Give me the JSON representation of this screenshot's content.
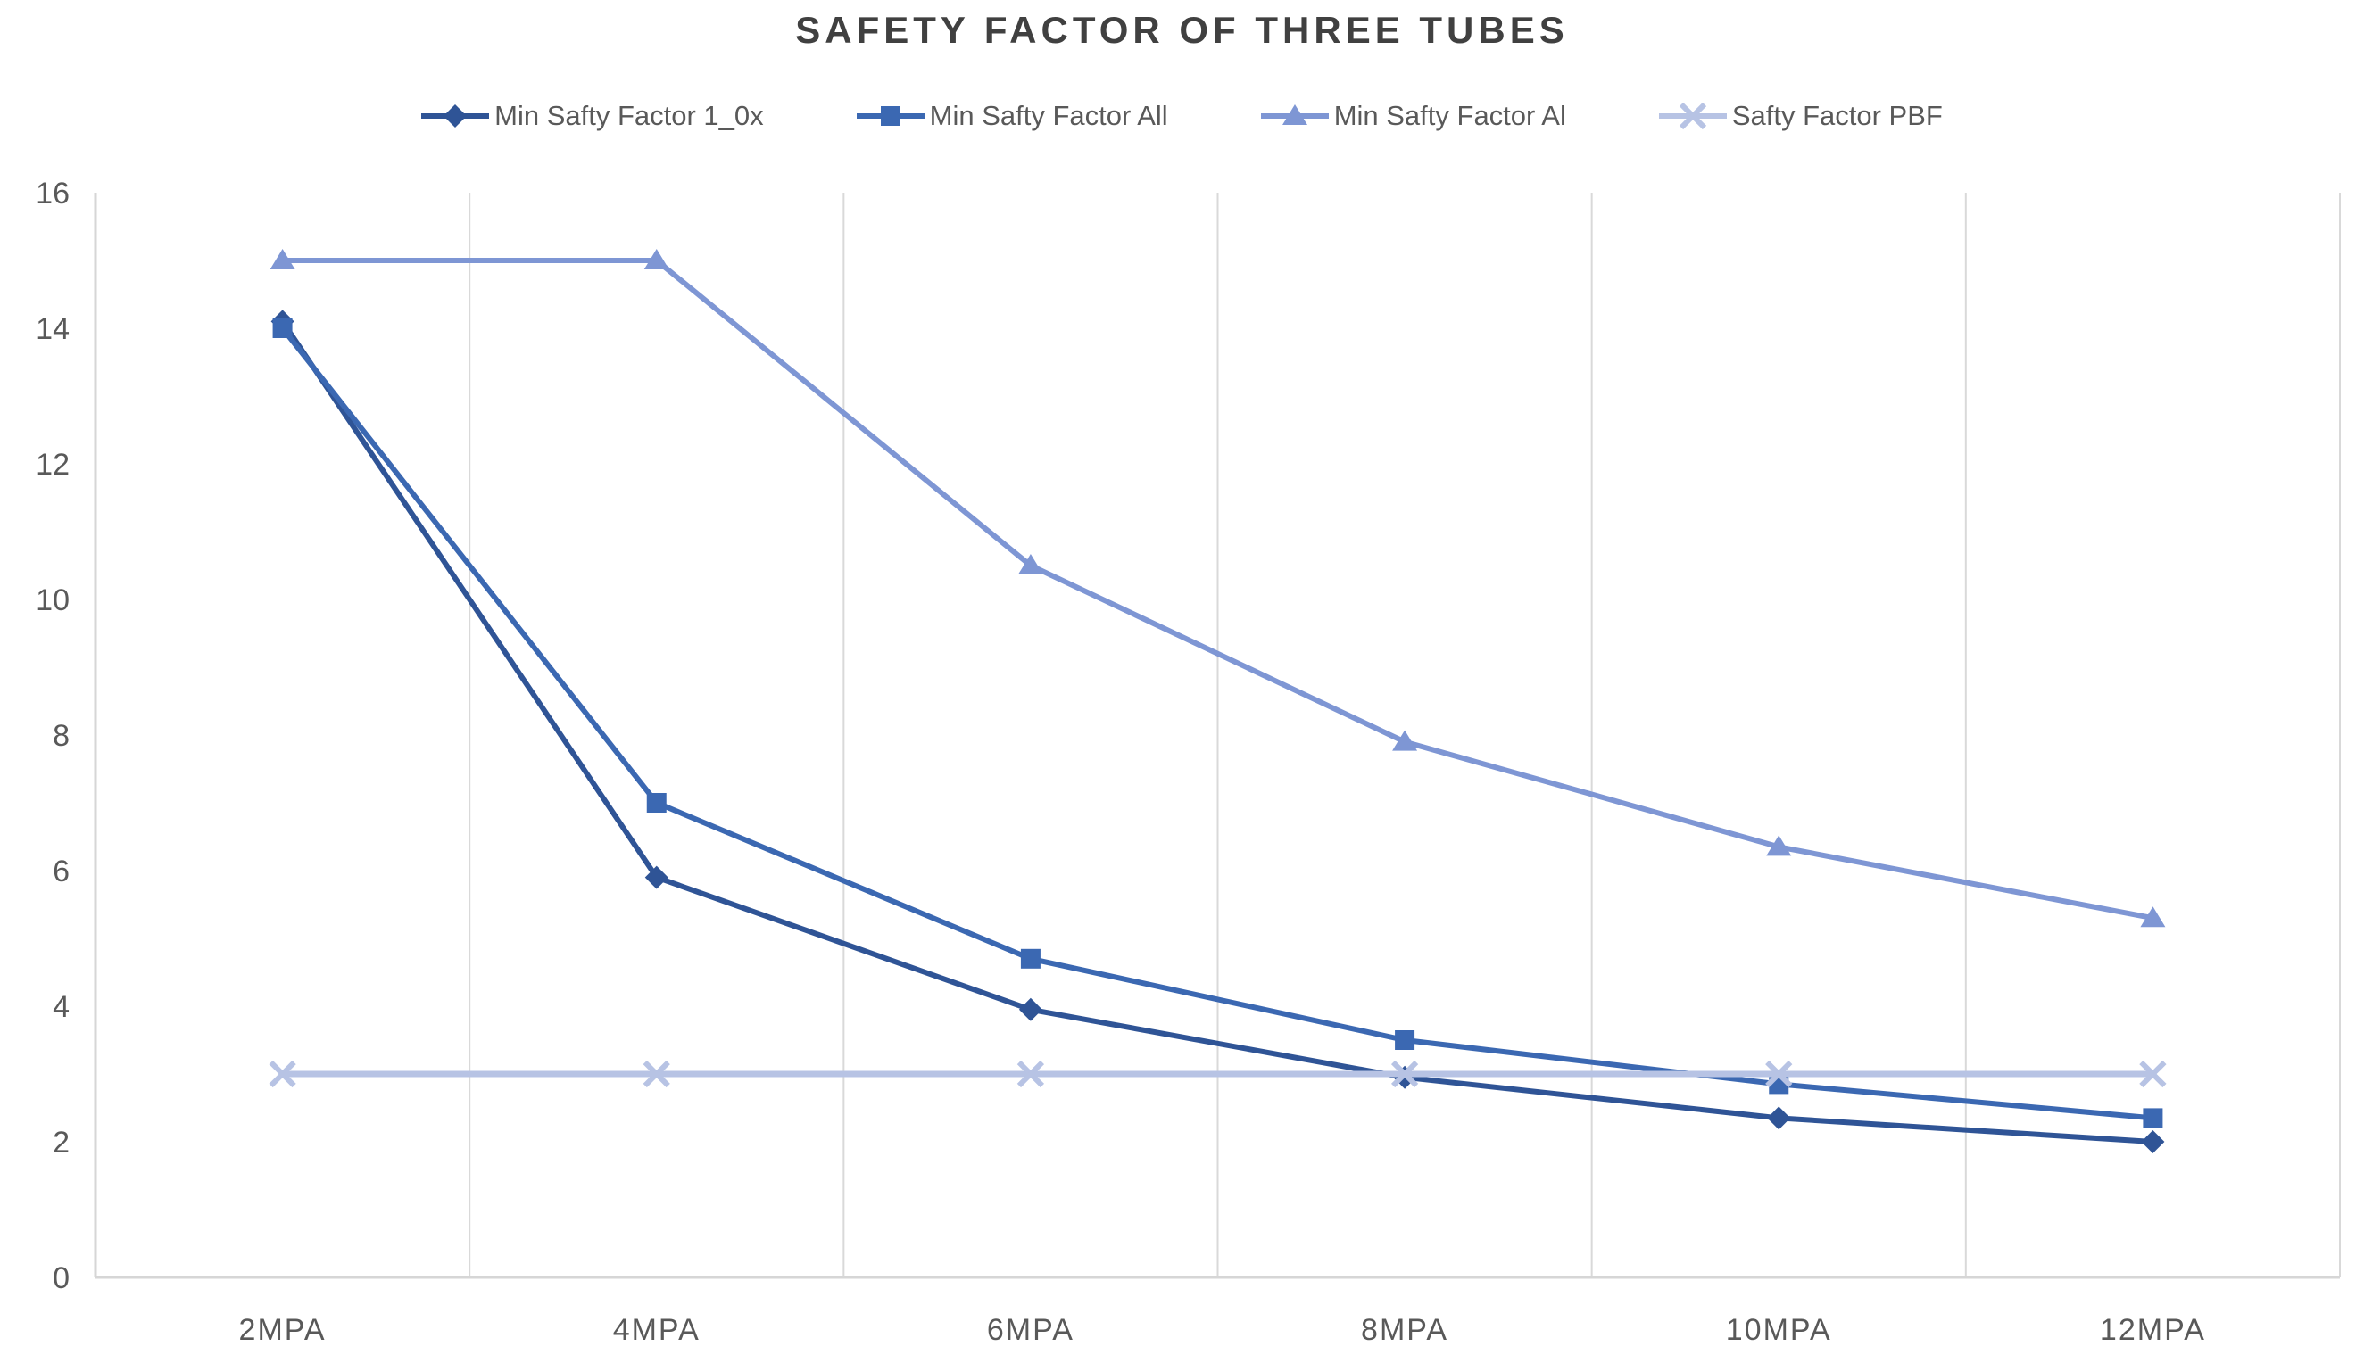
{
  "title": "SAFETY FACTOR OF THREE TUBES",
  "chart_data": {
    "type": "line",
    "title": "SAFETY FACTOR OF THREE TUBES",
    "categories": [
      "2MPA",
      "4MPA",
      "6MPA",
      "8MPA",
      "10MPA",
      "12MPA"
    ],
    "series": [
      {
        "name": "Min Safty Factor 1_0x",
        "marker": "diamond",
        "color": "#2F5496",
        "values": [
          14.1,
          5.9,
          3.95,
          2.95,
          2.35,
          2.0
        ]
      },
      {
        "name": "Min Safty Factor All",
        "marker": "square",
        "color": "#3B68B2",
        "values": [
          14.0,
          7.0,
          4.7,
          3.5,
          2.85,
          2.35
        ]
      },
      {
        "name": "Min Safty Factor Al",
        "marker": "triangle",
        "color": "#7E96D4",
        "values": [
          15.0,
          15.0,
          10.5,
          7.9,
          6.35,
          5.3
        ]
      },
      {
        "name": "Safty Factor PBF",
        "marker": "x",
        "color": "#B7C3E4",
        "values": [
          3.0,
          3.0,
          3.0,
          3.0,
          3.0,
          3.0
        ]
      }
    ],
    "ylim": [
      0,
      16
    ],
    "ytick_step": 2,
    "ytick_labels": [
      "0",
      "2",
      "4",
      "6",
      "8",
      "10",
      "12",
      "14",
      "16"
    ],
    "grid": "vertical-only",
    "legend_position": "top",
    "colors": {
      "title_text": "#404040",
      "axis_text": "#595959",
      "gridline": "#D9D9D9",
      "axis_line": "#D6D6D6",
      "background": "#FFFFFF"
    }
  }
}
